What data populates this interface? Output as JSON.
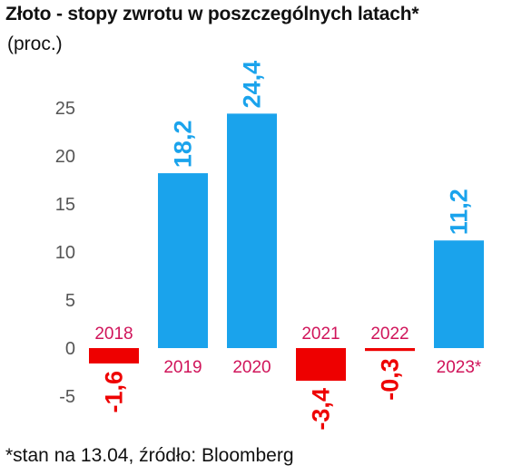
{
  "chart_data": {
    "type": "bar",
    "title": "Złoto - stopy zwrotu w poszczególnych latach*",
    "subtitle": "(proc.)",
    "categories": [
      "2018",
      "2019",
      "2020",
      "2021",
      "2022",
      "2023*"
    ],
    "values": [
      -1.6,
      18.2,
      24.4,
      -3.4,
      -0.3,
      11.2
    ],
    "value_labels": [
      "-1,6",
      "18,2",
      "24,4",
      "-3,4",
      "-0,3",
      "11,2"
    ],
    "yticks": [
      -5,
      0,
      5,
      10,
      15,
      20,
      25
    ],
    "ylim": [
      -5,
      25
    ],
    "grid": false,
    "colors": {
      "positive": "#1aa3ec",
      "negative": "#ee0000",
      "category_label": "#d0145a"
    }
  },
  "footnote": "*stan na 13.04, źródło: Bloomberg"
}
